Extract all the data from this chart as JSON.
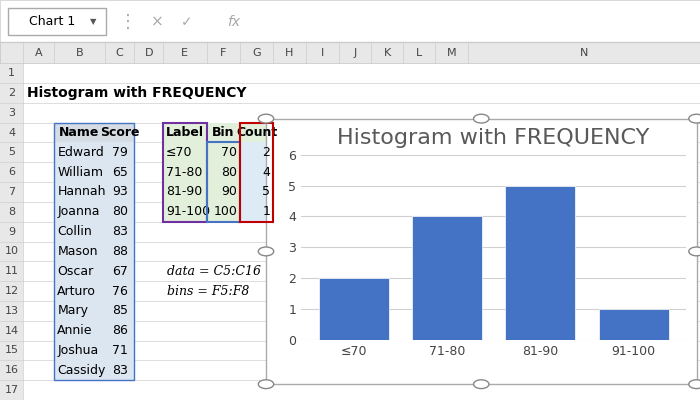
{
  "title": "Histogram with FREQUENCY",
  "spreadsheet_title": "Histogram with FREQUENCY",
  "toolbar_label": "Chart 1",
  "names": [
    "Edward",
    "William",
    "Hannah",
    "Joanna",
    "Collin",
    "Mason",
    "Oscar",
    "Arturo",
    "Mary",
    "Annie",
    "Joshua",
    "Cassidy"
  ],
  "scores": [
    79,
    65,
    93,
    80,
    83,
    88,
    67,
    76,
    85,
    86,
    71,
    83
  ],
  "labels": [
    "≤70",
    "71-80",
    "81-90",
    "91-100"
  ],
  "bins": [
    70,
    80,
    90,
    100
  ],
  "counts": [
    2,
    4,
    5,
    1
  ],
  "formula_text1": "data = C5:C16",
  "formula_text2": "bins = F5:F8",
  "bar_color": "#4472C4",
  "grid_color": "#D0D0D0",
  "name_col_bg": "#DCE6F1",
  "name_hdr_bg": "#D6DCE4",
  "label_col_bg": "#E2EFDA",
  "count_col_bg": "#DDEBF7",
  "count_border": "#C00000",
  "label_border": "#7030A0",
  "bin_border": "#4472C4",
  "ylim": [
    0,
    6
  ],
  "yticks": [
    0,
    1,
    2,
    3,
    4,
    5,
    6
  ],
  "chart_title_fontsize": 16,
  "chart_title_color": "#595959"
}
